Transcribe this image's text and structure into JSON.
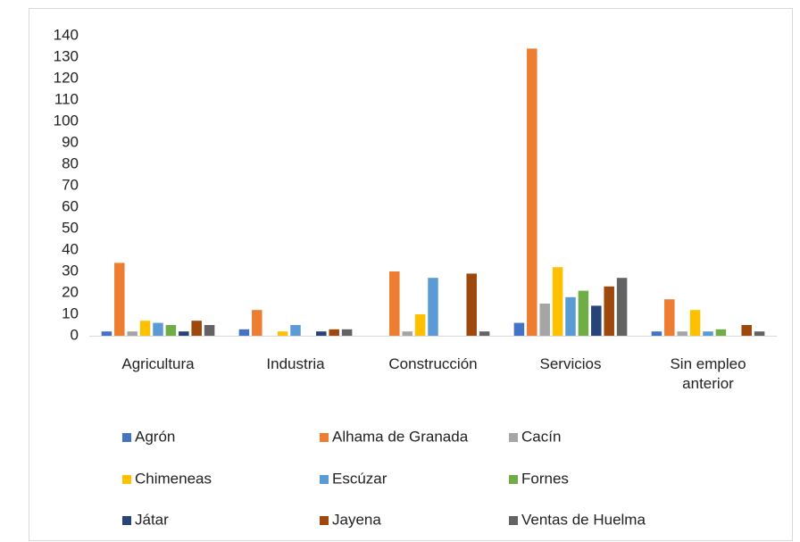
{
  "chart_data": {
    "type": "bar",
    "categories": [
      "Agricultura",
      "Industria",
      "Construcción",
      "Servicios",
      "Sin empleo anterior"
    ],
    "series": [
      {
        "name": "Agrón",
        "color": "#4472c4",
        "values": [
          2,
          3,
          0,
          6,
          2
        ]
      },
      {
        "name": "Alhama de Granada",
        "color": "#ed7d31",
        "values": [
          34,
          12,
          30,
          134,
          17
        ]
      },
      {
        "name": "Cacín",
        "color": "#a5a5a5",
        "values": [
          2,
          0,
          2,
          15,
          2
        ]
      },
      {
        "name": "Chimeneas",
        "color": "#ffc000",
        "values": [
          7,
          2,
          10,
          32,
          12
        ]
      },
      {
        "name": "Escúzar",
        "color": "#5b9bd5",
        "values": [
          6,
          5,
          27,
          18,
          2
        ]
      },
      {
        "name": "Fornes",
        "color": "#70ad47",
        "values": [
          5,
          0,
          0,
          21,
          3
        ]
      },
      {
        "name": "Játar",
        "color": "#264478",
        "values": [
          2,
          2,
          0,
          14,
          0
        ]
      },
      {
        "name": "Jayena",
        "color": "#9e480e",
        "values": [
          7,
          3,
          29,
          23,
          5
        ]
      },
      {
        "name": "Ventas de Huelma",
        "color": "#636363",
        "values": [
          5,
          3,
          2,
          27,
          2
        ]
      }
    ],
    "ylim": [
      0,
      140
    ],
    "yticks": [
      0,
      10,
      20,
      30,
      40,
      50,
      60,
      70,
      80,
      90,
      100,
      110,
      120,
      130,
      140
    ],
    "grid": false,
    "legend": "bottom"
  }
}
